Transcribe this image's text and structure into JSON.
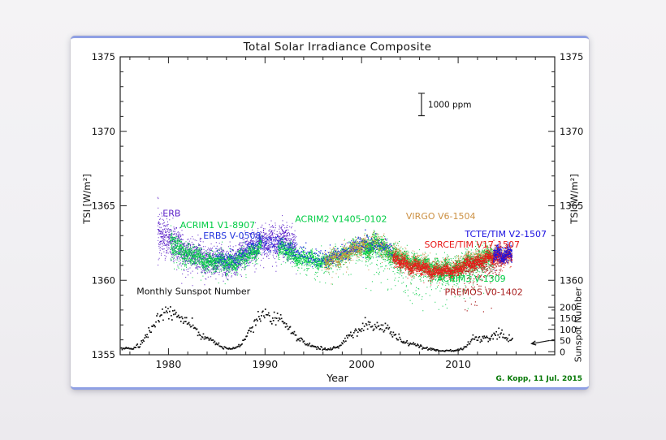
{
  "footer": {
    "credit": "G. Kopp, 11 Jul. 2015",
    "credit_color": "#067806"
  },
  "chart_data": {
    "type": "scatter",
    "title": "Total Solar Irradiance Composite",
    "xlabel": "Year",
    "ylabel_left": "TSI [W/m²]",
    "ylabel_right": "TSI [W/m²]",
    "ylabel_sunspot": "Sunspot Number",
    "grid": false,
    "legend_position": "labels-inside-plot",
    "xlim": [
      1975,
      2020
    ],
    "x_major_ticks": [
      1980,
      1990,
      2000,
      2010
    ],
    "x_minor_step": 2,
    "ylim": [
      1355,
      1375
    ],
    "y_major_ticks": [
      1355,
      1360,
      1365,
      1370,
      1375
    ],
    "y_right_ticks": [
      1360,
      1365,
      1370,
      1375
    ],
    "y_minor_step": 1,
    "sunspot_axis": {
      "ticks": [
        0,
        50,
        100,
        150,
        200
      ],
      "tsi_at_ssn0": 1355.2,
      "tsi_per_ssn": 0.015
    },
    "uncertainty_bar": {
      "label": "1000 ppm",
      "x": 2006.2,
      "y_center": 1371.8,
      "half_height": 0.75
    },
    "arrow": {
      "x1": 2019.4,
      "ssn1": 50,
      "x2": 2017.6,
      "ssn2": 36
    },
    "series": [
      {
        "name": "erb",
        "label": "ERB",
        "color": "#5a1ec8",
        "label_pos": [
          1979.4,
          1364.3
        ],
        "range": [
          1978.85,
          1993.2
        ],
        "pts_per_year": 160,
        "dot": 1.0,
        "wiggle": true,
        "sigma": 0.5,
        "sigma_anchors": [
          [
            1978.9,
            0.8
          ],
          [
            1980,
            0.6
          ],
          [
            1985,
            0.45
          ],
          [
            1989,
            0.5
          ],
          [
            1993.2,
            0.55
          ]
        ],
        "spike_prob": 0.07,
        "spike_depth": 2.2,
        "anchors": [
          [
            1978.85,
            1363.4
          ],
          [
            1979.3,
            1363.1
          ],
          [
            1980,
            1362.6
          ],
          [
            1981,
            1362.2
          ],
          [
            1982,
            1361.9
          ],
          [
            1983,
            1361.6
          ],
          [
            1984,
            1361.4
          ],
          [
            1985,
            1361.3
          ],
          [
            1986,
            1361.3
          ],
          [
            1987,
            1361.4
          ],
          [
            1988,
            1361.9
          ],
          [
            1989,
            1362.4
          ],
          [
            1990,
            1362.5
          ],
          [
            1991,
            1362.7
          ],
          [
            1991.8,
            1362.8
          ],
          [
            1992.5,
            1362.4
          ],
          [
            1993.2,
            1362.0
          ]
        ]
      },
      {
        "name": "acrim1",
        "label": "ACRIM1 V1-8907",
        "color": "#00cc44",
        "label_pos": [
          1981.2,
          1363.5
        ],
        "range": [
          1980.15,
          1989.6
        ],
        "pts_per_year": 180,
        "dot": 1.0,
        "wiggle": true,
        "sigma": 0.3,
        "sigma_anchors": [
          [
            1980.15,
            0.45
          ],
          [
            1983,
            0.3
          ],
          [
            1989.6,
            0.3
          ]
        ],
        "spike_prob": 0.05,
        "spike_depth": 1.6,
        "anchors": [
          [
            1980.15,
            1362.4
          ],
          [
            1981,
            1362.1
          ],
          [
            1982,
            1361.8
          ],
          [
            1983,
            1361.5
          ],
          [
            1984,
            1361.35
          ],
          [
            1985,
            1361.2
          ],
          [
            1986,
            1361.15
          ],
          [
            1987,
            1361.25
          ],
          [
            1988,
            1361.6
          ],
          [
            1989,
            1362.1
          ],
          [
            1989.6,
            1362.2
          ]
        ]
      },
      {
        "name": "acrim2",
        "label": "ACRIM2 V1405-0102",
        "color": "#00cc44",
        "label_pos": [
          1993.1,
          1363.9
        ],
        "range": [
          1991.3,
          2001.2
        ],
        "pts_per_year": 180,
        "dot": 1.0,
        "wiggle": true,
        "sigma": 0.28,
        "spike_prob": 0.05,
        "spike_depth": 1.5,
        "anchors": [
          [
            1991.3,
            1362.2
          ],
          [
            1992,
            1362.0
          ],
          [
            1993,
            1361.7
          ],
          [
            1994,
            1361.45
          ],
          [
            1995,
            1361.3
          ],
          [
            1996,
            1361.25
          ],
          [
            1997,
            1361.4
          ],
          [
            1998,
            1361.7
          ],
          [
            1999,
            1362.0
          ],
          [
            2000,
            1362.2
          ],
          [
            2001.2,
            1362.2
          ]
        ]
      },
      {
        "name": "virgo",
        "label": "VIRGO V6-1504",
        "color": "#cc9144",
        "label_pos": [
          2004.6,
          1364.1
        ],
        "range": [
          1996.1,
          2015.5
        ],
        "pts_per_year": 170,
        "dot": 1.0,
        "wiggle": true,
        "sigma": 0.28,
        "spike_prob": 0.05,
        "spike_depth": 1.6,
        "anchors": [
          [
            1996.1,
            1361.25
          ],
          [
            1997,
            1361.35
          ],
          [
            1998,
            1361.7
          ],
          [
            1999,
            1362.0
          ],
          [
            2000,
            1362.3
          ],
          [
            2001,
            1362.4
          ],
          [
            2002,
            1362.35
          ],
          [
            2003,
            1361.9
          ],
          [
            2004,
            1361.5
          ],
          [
            2005,
            1361.3
          ],
          [
            2006,
            1361.1
          ],
          [
            2007,
            1360.9
          ],
          [
            2008,
            1360.75
          ],
          [
            2009,
            1360.75
          ],
          [
            2010,
            1360.95
          ],
          [
            2011,
            1361.25
          ],
          [
            2012,
            1361.5
          ],
          [
            2013,
            1361.6
          ],
          [
            2014,
            1361.8
          ],
          [
            2015.5,
            1361.7
          ]
        ]
      },
      {
        "name": "acrim3",
        "label": "ACRIM3 V-1309",
        "color": "#00cc44",
        "label_pos": [
          2007.8,
          1359.9
        ],
        "range": [
          2000.3,
          2013.6
        ],
        "pts_per_year": 170,
        "dot": 1.0,
        "wiggle": true,
        "sigma": 0.4,
        "spike_prob": 0.12,
        "spike_depth": 3.2,
        "anchors": [
          [
            2000.3,
            1362.2
          ],
          [
            2001,
            1362.3
          ],
          [
            2002,
            1362.25
          ],
          [
            2003,
            1361.8
          ],
          [
            2004,
            1361.4
          ],
          [
            2005,
            1361.2
          ],
          [
            2006,
            1361.0
          ],
          [
            2007,
            1360.8
          ],
          [
            2008,
            1360.65
          ],
          [
            2009,
            1360.65
          ],
          [
            2010,
            1360.85
          ],
          [
            2011,
            1361.15
          ],
          [
            2012,
            1361.4
          ],
          [
            2013.6,
            1361.5
          ]
        ]
      },
      {
        "name": "erbs",
        "label": "ERBS V-0508",
        "color": "#2233dd",
        "label_pos": [
          1983.6,
          1362.8
        ],
        "range": [
          1984.8,
          2003.2
        ],
        "pts_per_year": 26,
        "dot": 1.3,
        "wiggle": false,
        "sigma": 0.3,
        "spike_prob": 0.03,
        "spike_depth": 0.8,
        "anchors": [
          [
            1984.8,
            1361.5
          ],
          [
            1986,
            1361.35
          ],
          [
            1987,
            1361.5
          ],
          [
            1988,
            1361.9
          ],
          [
            1989,
            1362.4
          ],
          [
            1990,
            1362.5
          ],
          [
            1991,
            1362.5
          ],
          [
            1992,
            1362.3
          ],
          [
            1993,
            1362.0
          ],
          [
            1994,
            1361.7
          ],
          [
            1995,
            1361.5
          ],
          [
            1996,
            1361.4
          ],
          [
            1997,
            1361.5
          ],
          [
            1998,
            1361.9
          ],
          [
            1999,
            1362.2
          ],
          [
            2000,
            1362.5
          ],
          [
            2001,
            1362.5
          ],
          [
            2002,
            1362.4
          ],
          [
            2003.2,
            1362.1
          ]
        ]
      },
      {
        "name": "premos",
        "label": "PREMOS V0-1402",
        "color": "#aa2020",
        "label_pos": [
          2008.6,
          1359.0
        ],
        "range": [
          2010.6,
          2014.4
        ],
        "pts_per_year": 50,
        "dot": 1.2,
        "wiggle": false,
        "sigma": 0.45,
        "spike_prob": 0.3,
        "spike_depth": 2.8,
        "anchors": [
          [
            2010.6,
            1360.5
          ],
          [
            2011.5,
            1360.7
          ],
          [
            2012.5,
            1360.9
          ],
          [
            2013.5,
            1361.1
          ],
          [
            2014.4,
            1361.2
          ]
        ]
      },
      {
        "name": "sorce-tim",
        "label": "SORCE/TIM V17-1507",
        "color": "#e81818",
        "label_pos": [
          2006.5,
          1362.2
        ],
        "range": [
          2003.2,
          2015.55
        ],
        "pts_per_year": 200,
        "dot": 1.0,
        "wiggle": true,
        "sigma": 0.22,
        "spike_prob": 0.05,
        "spike_depth": 1.2,
        "anchors": [
          [
            2003.2,
            1361.4
          ],
          [
            2004,
            1361.2
          ],
          [
            2005,
            1361.0
          ],
          [
            2006,
            1360.85
          ],
          [
            2007,
            1360.7
          ],
          [
            2008,
            1360.6
          ],
          [
            2009,
            1360.55
          ],
          [
            2010,
            1360.8
          ],
          [
            2011,
            1361.05
          ],
          [
            2012,
            1361.3
          ],
          [
            2013,
            1361.4
          ],
          [
            2014,
            1361.6
          ],
          [
            2015.55,
            1361.55
          ]
        ]
      },
      {
        "name": "tcte-tim",
        "label": "TCTE/TIM V2-1507",
        "color": "#1a10e0",
        "label_pos": [
          2010.7,
          1362.9
        ],
        "range": [
          2013.6,
          2015.55
        ],
        "pts_per_year": 220,
        "dot": 1.0,
        "wiggle": true,
        "sigma": 0.28,
        "spike_prob": 0.03,
        "spike_depth": 0.8,
        "anchors": [
          [
            2013.6,
            1361.7
          ],
          [
            2014.2,
            1361.85
          ],
          [
            2014.8,
            1361.75
          ],
          [
            2015.55,
            1361.7
          ]
        ]
      }
    ],
    "sunspot_series": {
      "name": "monthly-sunspot-number",
      "label": "Monthly Sunspot Number",
      "color": "#111111",
      "label_pos": [
        1976.7,
        1359.05
      ],
      "range": [
        1975.05,
        2015.6
      ],
      "pts_per_year": 12,
      "dot": 1.7,
      "anchors": [
        [
          1975,
          18
        ],
        [
          1976,
          13
        ],
        [
          1977,
          28
        ],
        [
          1978,
          95
        ],
        [
          1979,
          160
        ],
        [
          1979.8,
          180
        ],
        [
          1980.5,
          160
        ],
        [
          1981.5,
          145
        ],
        [
          1982.5,
          110
        ],
        [
          1983.5,
          70
        ],
        [
          1984.5,
          50
        ],
        [
          1985.5,
          20
        ],
        [
          1986.5,
          13
        ],
        [
          1987.5,
          35
        ],
        [
          1988.5,
          105
        ],
        [
          1989.5,
          160
        ],
        [
          1990.5,
          150
        ],
        [
          1991.5,
          150
        ],
        [
          1992.5,
          95
        ],
        [
          1993.5,
          55
        ],
        [
          1994.5,
          32
        ],
        [
          1995.5,
          18
        ],
        [
          1996.5,
          9
        ],
        [
          1997.5,
          22
        ],
        [
          1998.5,
          65
        ],
        [
          1999.5,
          95
        ],
        [
          2000.5,
          120
        ],
        [
          2001.5,
          115
        ],
        [
          2002.5,
          105
        ],
        [
          2003.5,
          65
        ],
        [
          2004.5,
          42
        ],
        [
          2005.5,
          30
        ],
        [
          2006.5,
          16
        ],
        [
          2007.5,
          8
        ],
        [
          2008.5,
          3
        ],
        [
          2009.5,
          4
        ],
        [
          2010.5,
          17
        ],
        [
          2011.5,
          58
        ],
        [
          2012.5,
          60
        ],
        [
          2013.5,
          65
        ],
        [
          2014.2,
          80
        ],
        [
          2015,
          62
        ],
        [
          2015.6,
          55
        ]
      ]
    }
  }
}
